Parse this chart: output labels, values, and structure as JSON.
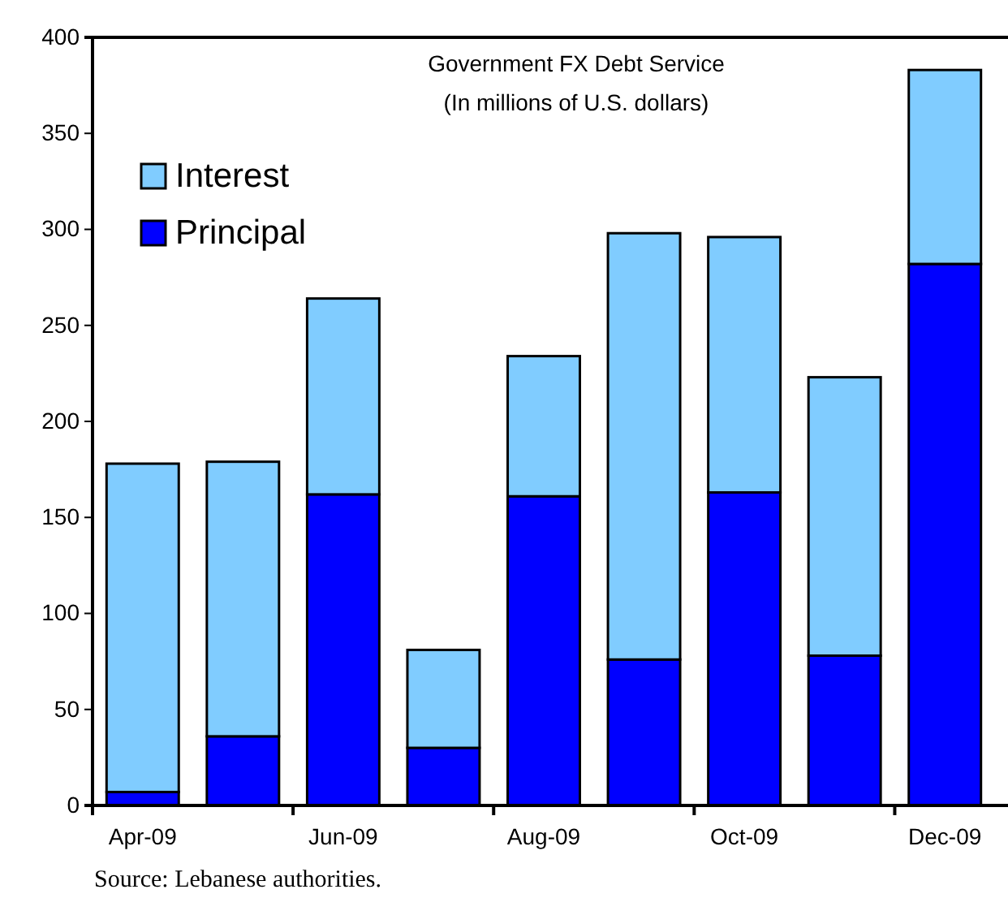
{
  "chart_data": {
    "type": "bar",
    "title": "Government FX Debt Service",
    "subtitle": "(In millions of U.S. dollars)",
    "categories": [
      "Apr-09",
      null,
      "Jun-09",
      null,
      "Aug-09",
      null,
      "Oct-09",
      null,
      "Dec-09"
    ],
    "stacked": true,
    "series": [
      {
        "name": "Principal",
        "color": "#0000ff",
        "values": [
          7,
          36,
          162,
          30,
          161,
          76,
          163,
          78,
          282
        ]
      },
      {
        "name": "Interest",
        "color": "#80ccff",
        "values": [
          171,
          143,
          102,
          51,
          73,
          222,
          133,
          145,
          101
        ]
      }
    ],
    "ylim": [
      0,
      400
    ],
    "yticks": [
      0,
      50,
      100,
      150,
      200,
      250,
      300,
      350,
      400
    ],
    "grid": false,
    "legend": "top left",
    "annotations": [
      "Source: Lebanese authorities."
    ]
  }
}
